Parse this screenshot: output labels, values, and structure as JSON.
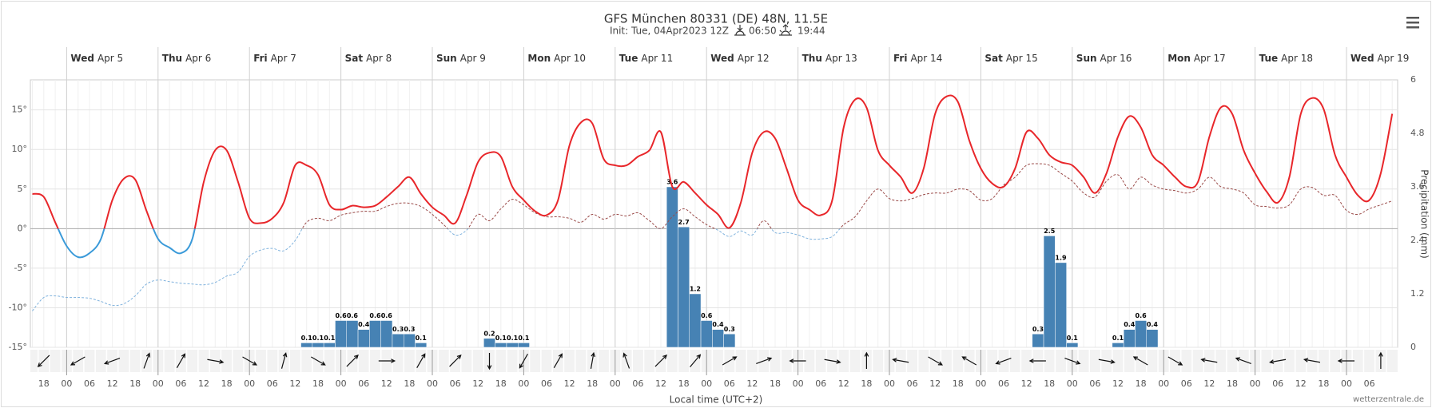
{
  "chart_data": {
    "type": "line",
    "title": "GFS München 80331 (DE) 48N, 11.5E",
    "subtitle": "Init: Tue, 04Apr2023 12Z",
    "sunrise": "06:50",
    "sunset": "19:44",
    "x_label": "Local time (UTC+2)",
    "y2_label": "Precipitation (mm)",
    "credit": "wetterzentrale.de",
    "grid": true,
    "categories": [
      null,
      "18",
      null,
      "00",
      null,
      "06",
      null,
      "12",
      null,
      "18",
      null,
      "00",
      null,
      "06",
      null,
      "12",
      null,
      "18",
      null,
      "00",
      null,
      "06",
      null,
      "12",
      null,
      "18",
      null,
      "00",
      null,
      "06",
      null,
      "12",
      null,
      "18",
      null,
      "00",
      null,
      "06",
      null,
      "12",
      null,
      "18",
      null,
      "00",
      null,
      "06",
      null,
      "12",
      null,
      "18",
      null,
      "00",
      null,
      "06",
      null,
      "12",
      null,
      "18",
      null,
      "00",
      null,
      "06",
      null,
      "12",
      null,
      "18",
      null,
      "00",
      null,
      "06",
      null,
      "12",
      null,
      "18",
      null,
      "00",
      null,
      "06",
      null,
      "12",
      null,
      "18",
      null,
      "00",
      null,
      "06",
      null,
      "12",
      null,
      "18",
      null,
      "00",
      null,
      "06",
      null,
      "12",
      null,
      "18",
      null,
      "00",
      null,
      "06",
      null,
      "12",
      null,
      "18",
      null,
      "00",
      null,
      "06",
      null,
      "12",
      null,
      "18",
      null,
      "00",
      null,
      "06",
      null,
      null
    ],
    "day_labels": [
      {
        "weekday": "Wed",
        "date": "Apr 5"
      },
      {
        "weekday": "Thu",
        "date": "Apr 6"
      },
      {
        "weekday": "Fri",
        "date": "Apr 7"
      },
      {
        "weekday": "Sat",
        "date": "Apr 8"
      },
      {
        "weekday": "Sun",
        "date": "Apr 9"
      },
      {
        "weekday": "Mon",
        "date": "Apr 10"
      },
      {
        "weekday": "Tue",
        "date": "Apr 11"
      },
      {
        "weekday": "Wed",
        "date": "Apr 12"
      },
      {
        "weekday": "Thu",
        "date": "Apr 13"
      },
      {
        "weekday": "Fri",
        "date": "Apr 14"
      },
      {
        "weekday": "Sat",
        "date": "Apr 15"
      },
      {
        "weekday": "Sun",
        "date": "Apr 16"
      },
      {
        "weekday": "Mon",
        "date": "Apr 17"
      },
      {
        "weekday": "Tue",
        "date": "Apr 18"
      },
      {
        "weekday": "Wed",
        "date": "Apr 19"
      }
    ],
    "series": [
      {
        "color": "#e8262a",
        "color_below": "#3a9ad9",
        "values": [
          4.4,
          4.0,
          0.8,
          -2.2,
          -3.6,
          -3.1,
          -1.3,
          3.6,
          6.3,
          6.2,
          2.2,
          -1.3,
          -2.4,
          -3.1,
          -1.3,
          5.9,
          9.9,
          9.9,
          5.9,
          1.3,
          0.7,
          1.3,
          3.3,
          8.0,
          8.0,
          6.8,
          3.0,
          2.4,
          2.9,
          2.7,
          2.9,
          4.0,
          5.3,
          6.5,
          4.4,
          2.7,
          1.7,
          0.7,
          4.2,
          8.4,
          9.6,
          9.1,
          5.3,
          3.6,
          2.2,
          1.7,
          3.6,
          10.5,
          13.4,
          13.3,
          8.8,
          8.0,
          8.0,
          9.1,
          9.9,
          12.2,
          5.3,
          5.9,
          4.5,
          3.0,
          1.8,
          0.1,
          3.3,
          9.6,
          12.2,
          11.4,
          7.6,
          3.6,
          2.4,
          1.7,
          3.6,
          12.8,
          16.3,
          15.3,
          9.9,
          8.0,
          6.5,
          4.5,
          7.6,
          14.5,
          16.7,
          16.0,
          11.1,
          7.6,
          5.7,
          5.3,
          7.6,
          12.2,
          11.4,
          9.3,
          8.4,
          8.0,
          6.5,
          4.5,
          7.0,
          11.6,
          14.2,
          12.8,
          9.3,
          8.0,
          6.5,
          5.3,
          5.9,
          11.6,
          15.3,
          14.5,
          9.9,
          7.0,
          4.7,
          3.3,
          6.5,
          14.5,
          16.5,
          15.1,
          9.3,
          6.5,
          4.2,
          3.6,
          7.0,
          14.5
        ]
      },
      {
        "color": "#9a4a48",
        "color_below": "#7fb2dd",
        "dashed": true,
        "values": [
          -10.4,
          -8.7,
          -8.5,
          -8.7,
          -8.7,
          -8.8,
          -9.2,
          -9.7,
          -9.5,
          -8.5,
          -7.0,
          -6.5,
          -6.7,
          -6.9,
          -7.0,
          -7.1,
          -6.8,
          -6.0,
          -5.5,
          -3.5,
          -2.7,
          -2.5,
          -2.8,
          -1.5,
          0.8,
          1.3,
          1.0,
          1.7,
          2.0,
          2.2,
          2.2,
          2.8,
          3.2,
          3.2,
          2.8,
          1.8,
          0.5,
          -0.8,
          -0.2,
          1.8,
          1.0,
          2.5,
          3.7,
          3.0,
          2.0,
          1.5,
          1.5,
          1.3,
          0.8,
          1.8,
          1.2,
          1.8,
          1.6,
          2.0,
          1.0,
          0.0,
          1.5,
          2.5,
          1.5,
          0.5,
          -0.2,
          -1.0,
          -0.3,
          -0.8,
          1.0,
          -0.5,
          -0.5,
          -0.8,
          -1.3,
          -1.3,
          -1.0,
          0.5,
          1.5,
          3.5,
          5.0,
          3.8,
          3.5,
          3.8,
          4.3,
          4.5,
          4.5,
          5.0,
          4.8,
          3.6,
          3.8,
          5.5,
          6.5,
          8.0,
          8.2,
          8.0,
          7.0,
          6.0,
          4.5,
          4.0,
          6.0,
          6.8,
          5.0,
          6.5,
          5.5,
          5.0,
          4.8,
          4.5,
          5.0,
          6.5,
          5.3,
          5.0,
          4.5,
          3.0,
          2.8,
          2.6,
          3.0,
          5.0,
          5.2,
          4.2,
          4.2,
          2.3,
          1.8,
          2.5,
          3.0,
          3.5
        ]
      },
      {
        "type": "bar",
        "axis": "y2",
        "color": "#4682b4",
        "values": [
          0,
          0,
          0,
          0,
          0,
          0,
          0,
          0,
          0,
          0,
          0,
          0,
          0,
          0,
          0,
          0,
          0,
          0,
          0,
          0,
          0,
          0,
          0,
          0,
          0.1,
          0.1,
          0.1,
          0.6,
          0.6,
          0.4,
          0.6,
          0.6,
          0.3,
          0.3,
          0.1,
          0,
          0,
          0,
          0,
          0,
          0.2,
          0.1,
          0.1,
          0.1,
          0,
          0,
          0,
          0,
          0,
          0,
          0,
          0,
          0,
          0,
          0,
          0,
          3.6,
          2.7,
          1.2,
          0.6,
          0.4,
          0.3,
          0,
          0,
          0,
          0,
          0,
          0,
          0,
          0,
          0,
          0,
          0,
          0,
          0,
          0,
          0,
          0,
          0,
          0,
          0,
          0,
          0,
          0,
          0,
          0,
          0,
          0,
          0.3,
          2.5,
          1.9,
          0.1,
          0,
          0,
          0,
          0.1,
          0.4,
          0.6,
          0.4,
          0,
          0,
          0,
          0,
          0,
          0,
          0,
          0,
          0,
          0,
          0,
          0,
          0,
          0,
          0,
          0,
          0,
          0,
          0,
          0,
          0
        ]
      }
    ],
    "wind_direction": [
      225,
      240,
      250,
      20,
      30,
      100,
      120,
      15,
      120,
      45,
      90,
      30,
      45,
      180,
      210,
      30,
      10,
      340,
      45,
      40,
      60,
      70,
      270,
      100,
      0,
      280,
      120,
      300,
      250,
      270,
      110,
      100,
      300,
      120,
      280,
      290,
      260,
      280,
      270,
      0
    ],
    "ylim": [
      -15,
      18.8
    ],
    "yticks": [
      {
        "value": -15,
        "label": "-15°"
      },
      {
        "value": -10,
        "label": "-10°"
      },
      {
        "value": -5,
        "label": "-5°"
      },
      {
        "value": 0,
        "label": "0°"
      },
      {
        "value": 5,
        "label": "5°"
      },
      {
        "value": 10,
        "label": "10°"
      },
      {
        "value": 15,
        "label": "15°"
      }
    ],
    "y2lim": [
      0,
      6
    ],
    "y2ticks": [
      0,
      1.2,
      2.4,
      3.6,
      4.8,
      6
    ]
  }
}
